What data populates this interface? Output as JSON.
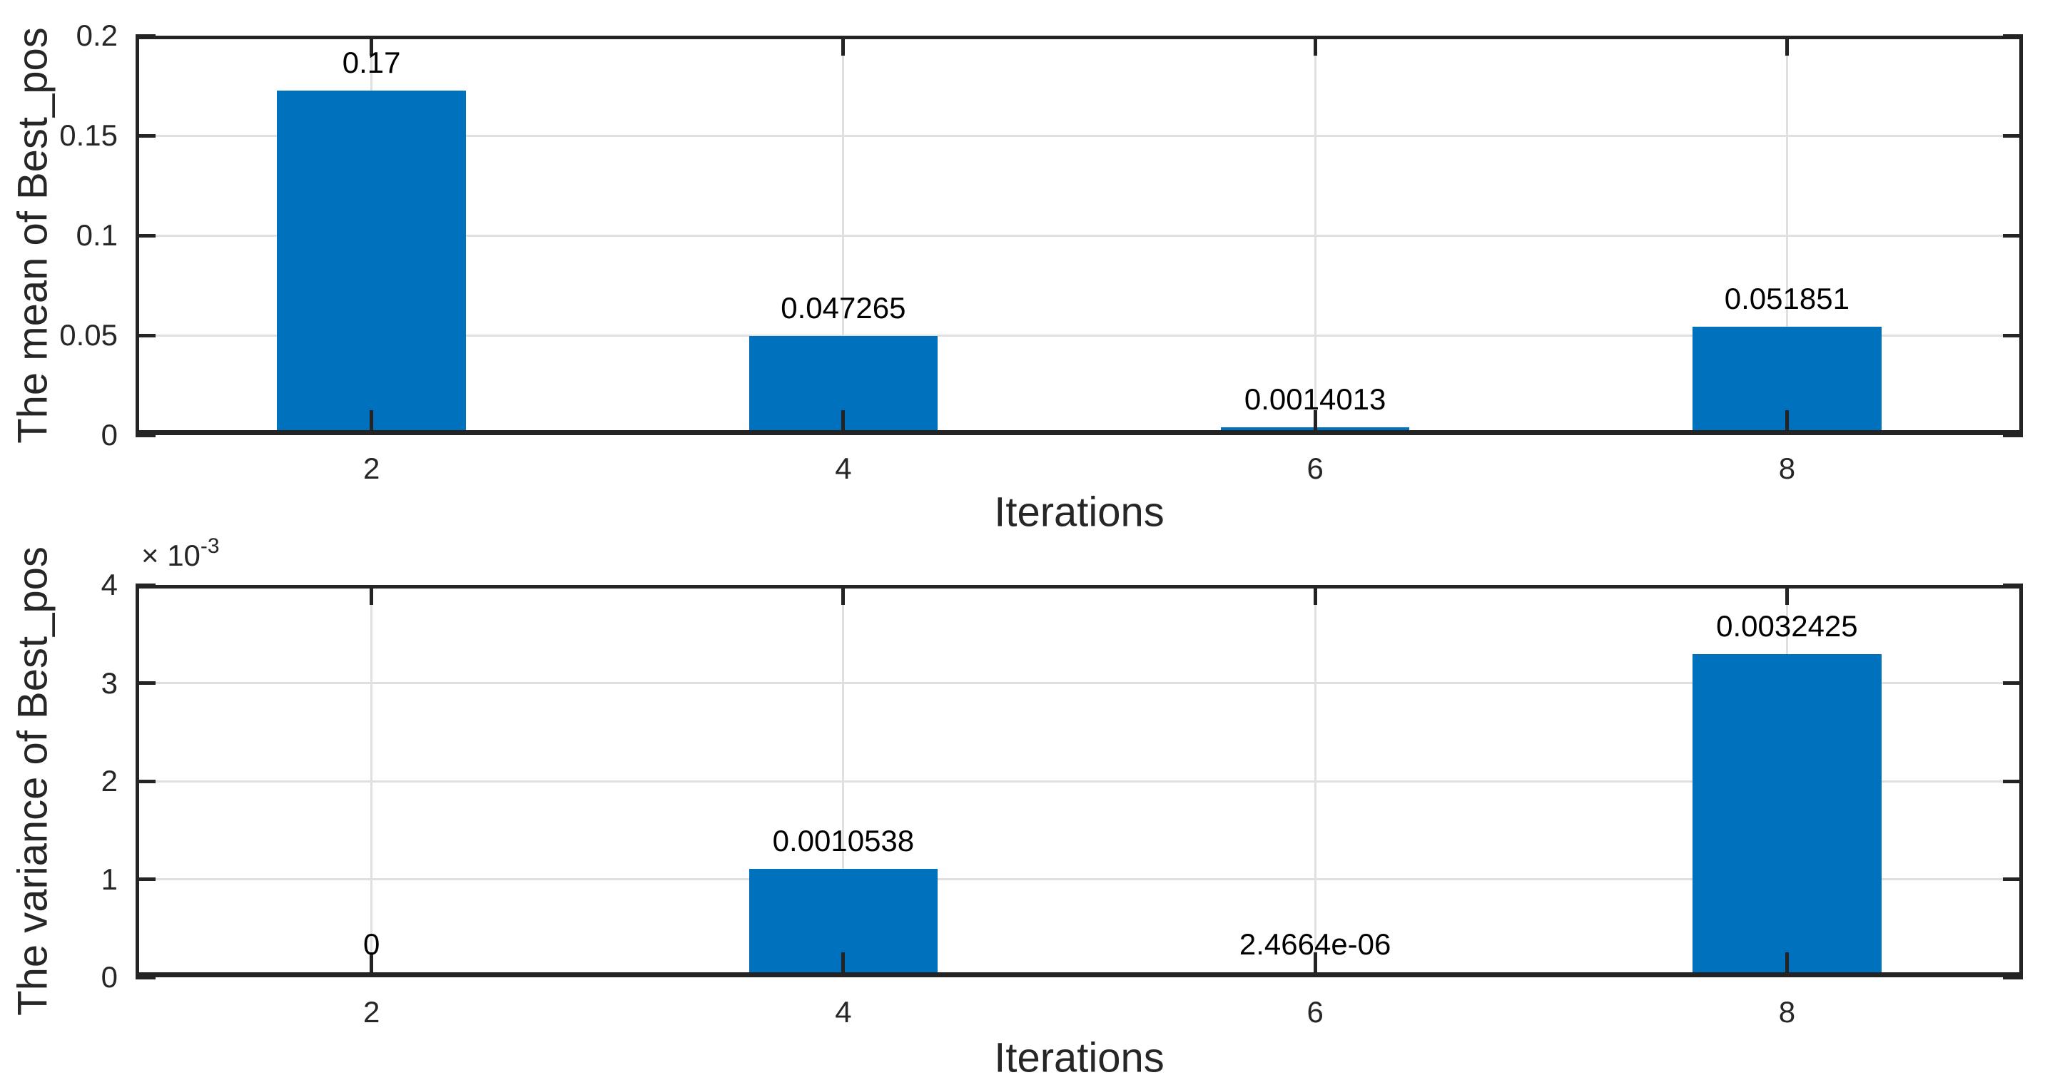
{
  "figure": {
    "background": "#ffffff",
    "text_color": "#262626",
    "grid_color": "#e0e0e0",
    "frame_color": "#242424"
  },
  "chart_data": [
    {
      "type": "bar",
      "title": "",
      "xlabel": "Iterations",
      "ylabel": "The mean of Best_pos",
      "x": [
        2,
        4,
        6,
        8
      ],
      "xtick_labels": [
        "2",
        "4",
        "6",
        "8"
      ],
      "values": [
        0.17,
        0.047265,
        0.0014013,
        0.051851
      ],
      "bar_labels": [
        "0.17",
        "0.047265",
        "0.0014013",
        "0.051851"
      ],
      "xlim": [
        1,
        9
      ],
      "ylim": [
        0,
        0.2
      ],
      "yticks": [
        0,
        0.05,
        0.1,
        0.15,
        0.2
      ],
      "ytick_labels": [
        "0",
        "0.05",
        "0.1",
        "0.15",
        "0.2"
      ],
      "bar_color": "#0072BD",
      "grid": true,
      "legend": null
    },
    {
      "type": "bar",
      "title": "",
      "xlabel": "Iterations",
      "ylabel": "The variance of Best_pos",
      "x": [
        2,
        4,
        6,
        8
      ],
      "xtick_labels": [
        "2",
        "4",
        "6",
        "8"
      ],
      "values": [
        0,
        0.0010538,
        2.4664e-06,
        0.0032425
      ],
      "bar_labels": [
        "0",
        "0.0010538",
        "2.4664e-06",
        "0.0032425"
      ],
      "xlim": [
        1,
        9
      ],
      "ylim": [
        0,
        0.004
      ],
      "yticks": [
        0,
        0.001,
        0.002,
        0.003,
        0.004
      ],
      "ytick_labels": [
        "0",
        "1",
        "2",
        "3",
        "4"
      ],
      "exponent_prefix": "× 10",
      "exponent": "-3",
      "bar_color": "#0072BD",
      "grid": true,
      "legend": null
    }
  ]
}
